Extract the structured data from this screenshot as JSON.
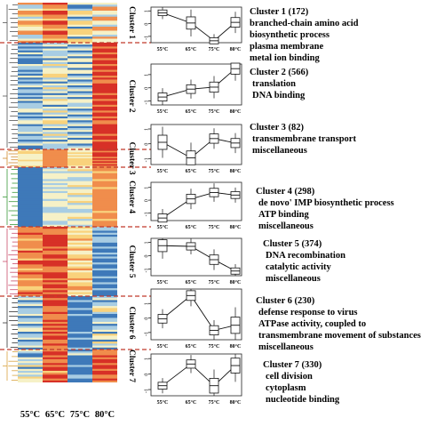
{
  "figure": {
    "x_axis_labels": [
      "55°C",
      "65°C",
      "75°C",
      "80°C"
    ],
    "heatmap_colors": {
      "blue": "#3e79b9",
      "light_blue": "#a8cde3",
      "pale": "#f6f1c7",
      "yellow": "#f9d27c",
      "orange": "#f08d4c",
      "red": "#d73027"
    },
    "separator_color": "#c0392b"
  },
  "clusters": [
    {
      "label": "Cluster 1",
      "title": "Cluster 1 (172)",
      "terms": [
        "branched-chain amino acid",
        "biosynthetic process",
        "plasma membrane",
        "metal ion binding"
      ],
      "tree_color": "#555555",
      "box_values": [
        0.85,
        0.05,
        -1.35,
        0.1
      ],
      "y_ticks": [
        "1",
        "0",
        "-1"
      ],
      "y_range": [
        -1.5,
        1.3
      ],
      "heat": [
        [
          "orange",
          "red",
          "yellow",
          "pale"
        ],
        [
          "yellow",
          "orange",
          "pale",
          "light_blue"
        ],
        [
          "light_blue",
          "orange",
          "blue",
          "orange"
        ],
        [
          "pale",
          "yellow",
          "light_blue",
          "orange"
        ],
        [
          "orange",
          "red",
          "yellow",
          "pale"
        ]
      ]
    },
    {
      "label": "Cluster 2",
      "title": "Cluster 2 (566)",
      "terms": [
        "translation",
        "DNA binding"
      ],
      "tree_color": "#555555",
      "box_values": [
        -0.7,
        -0.1,
        0.05,
        1.45
      ],
      "y_ticks": [
        "1",
        "0",
        "-1"
      ],
      "y_range": [
        -1.3,
        1.8
      ],
      "heat": [
        [
          "blue",
          "light_blue",
          "pale",
          "red"
        ],
        [
          "light_blue",
          "pale",
          "blue",
          "red"
        ],
        [
          "blue",
          "blue",
          "light_blue",
          "orange"
        ],
        [
          "light_blue",
          "pale",
          "pale",
          "red"
        ],
        [
          "blue",
          "light_blue",
          "blue",
          "red"
        ],
        [
          "pale",
          "yellow",
          "light_blue",
          "orange"
        ]
      ]
    },
    {
      "label": "Cluster 3",
      "title": "Cluster 3 (82)",
      "terms": [
        "transmembrane transport",
        "miscellaneous"
      ],
      "tree_color": "#d18a2c",
      "box_values": [
        0.1,
        -0.95,
        0.35,
        0.05
      ],
      "y_ticks": [
        "1",
        "0",
        "-1"
      ],
      "y_range": [
        -1.4,
        1.3
      ],
      "heat": [
        [
          "pale",
          "orange",
          "yellow",
          "red"
        ],
        [
          "yellow",
          "orange",
          "pale",
          "orange"
        ]
      ]
    },
    {
      "label": "Cluster 4",
      "title": "Cluster 4 (298)",
      "terms": [
        "de novo' IMP biosynthetic process",
        "ATP binding",
        "miscellaneous"
      ],
      "tree_color": "#3a9a3a",
      "box_values": [
        -1.4,
        0.1,
        0.6,
        0.4
      ],
      "y_ticks": [
        "1",
        "0",
        "-1"
      ],
      "y_range": [
        -1.6,
        1.4
      ],
      "heat": [
        [
          "blue",
          "light_blue",
          "pale",
          "orange"
        ],
        [
          "blue",
          "pale",
          "yellow",
          "orange"
        ],
        [
          "blue",
          "light_blue",
          "light_blue",
          "yellow"
        ],
        [
          "blue",
          "pale",
          "pale",
          "orange"
        ]
      ]
    },
    {
      "label": "Cluster 5",
      "title": "Cluster 5 (374)",
      "terms": [
        "DNA recombination",
        "catalytic activity",
        "miscellaneous"
      ],
      "tree_color": "#c94d6a",
      "box_values": [
        0.75,
        0.7,
        -0.3,
        -1.15
      ],
      "y_ticks": [
        "1",
        "0",
        "-1"
      ],
      "y_range": [
        -1.5,
        1.3
      ],
      "heat": [
        [
          "orange",
          "red",
          "yellow",
          "blue"
        ],
        [
          "yellow",
          "orange",
          "orange",
          "light_blue"
        ],
        [
          "orange",
          "red",
          "pale",
          "blue"
        ],
        [
          "red",
          "orange",
          "yellow",
          "light_blue"
        ],
        [
          "orange",
          "red",
          "pale",
          "blue"
        ]
      ]
    },
    {
      "label": "Cluster 6",
      "title": "Cluster 6 (230)",
      "terms": [
        "defense response to virus",
        "ATPase activity, coupled to",
        "transmembrane movement of substances",
        "miscellaneous"
      ],
      "tree_color": "#333333",
      "box_values": [
        -0.05,
        1.55,
        -0.85,
        -0.5
      ],
      "y_ticks": [
        "1",
        "0",
        "-1"
      ],
      "y_range": [
        -1.5,
        2.0
      ],
      "heat": [
        [
          "light_blue",
          "red",
          "blue",
          "light_blue"
        ],
        [
          "pale",
          "orange",
          "blue",
          "pale"
        ],
        [
          "blue",
          "red",
          "light_blue",
          "blue"
        ],
        [
          "light_blue",
          "orange",
          "blue",
          "yellow"
        ]
      ]
    },
    {
      "label": "Cluster 7",
      "title": "Cluster 7 (330)",
      "terms": [
        "cell division",
        "cytoplasm",
        "nucleotide binding"
      ],
      "tree_color": "#d9a441",
      "box_values": [
        -0.75,
        0.65,
        -0.75,
        0.55
      ],
      "y_ticks": [
        "1",
        "0",
        "-1"
      ],
      "y_range": [
        -1.4,
        1.3
      ],
      "heat": [
        [
          "pale",
          "orange",
          "blue",
          "red"
        ],
        [
          "light_blue",
          "red",
          "blue",
          "orange"
        ],
        [
          "yellow",
          "red",
          "light_blue",
          "orange"
        ],
        [
          "blue",
          "orange",
          "pale",
          "red"
        ],
        [
          "pale",
          "red",
          "blue",
          "orange"
        ],
        [
          "light_blue",
          "yellow",
          "blue",
          "red"
        ]
      ]
    }
  ]
}
